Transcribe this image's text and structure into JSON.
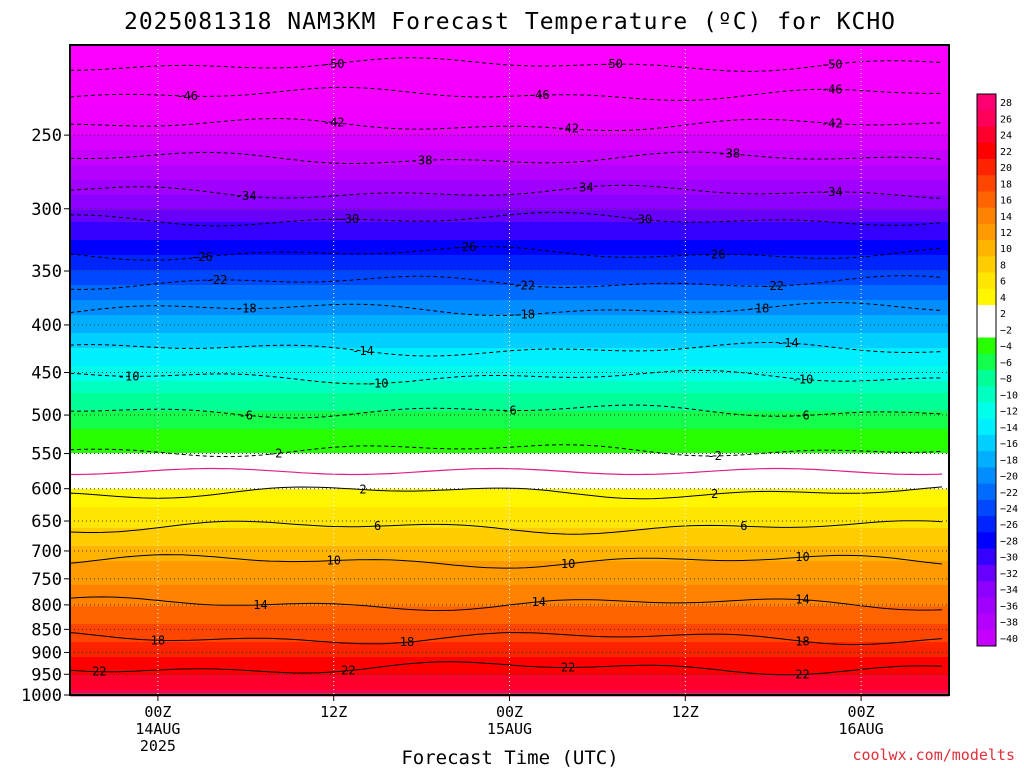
{
  "chart_data": {
    "type": "heatmap",
    "title": "2025081318 NAM3KM Forecast Temperature (ºC) for KCHO",
    "xlabel": "Forecast Time (UTC)",
    "credit": "coolwx.com/modelts",
    "y_axis": {
      "label": "",
      "scale": "log",
      "inverted": true,
      "ylim": [
        1000,
        200
      ],
      "ticks": [
        "250",
        "300",
        "350",
        "400",
        "450",
        "500",
        "550",
        "600",
        "650",
        "700",
        "750",
        "800",
        "850",
        "900",
        "950",
        "1000"
      ]
    },
    "x_axis": {
      "xlim_hours": [
        -6,
        54
      ],
      "ticks": [
        {
          "hour": 0,
          "lines": [
            "00Z",
            "14AUG",
            "2025"
          ]
        },
        {
          "hour": 12,
          "lines": [
            "12Z"
          ]
        },
        {
          "hour": 24,
          "lines": [
            "00Z",
            "15AUG"
          ]
        },
        {
          "hour": 36,
          "lines": [
            "12Z"
          ]
        },
        {
          "hour": 48,
          "lines": [
            "00Z",
            "16AUG"
          ]
        }
      ]
    },
    "grid": true,
    "legend": "right",
    "colorbar": {
      "levels": [
        28,
        26,
        24,
        22,
        20,
        18,
        16,
        14,
        12,
        10,
        8,
        6,
        4,
        2,
        -2,
        -4,
        -6,
        -8,
        -10,
        -12,
        -14,
        -16,
        -18,
        -20,
        -22,
        -24,
        -26,
        -28,
        -30,
        -32,
        -34,
        -36,
        -38,
        -40
      ],
      "labels": [
        "28",
        "26",
        "24",
        "22",
        "20",
        "18",
        "16",
        "14",
        "12",
        "10",
        "8",
        "6",
        "4",
        "2",
        "−2",
        "−4",
        "−6",
        "−8",
        "−10",
        "−12",
        "−14",
        "−16",
        "−18",
        "−20",
        "−22",
        "−24",
        "−26",
        "−28",
        "−30",
        "−32",
        "−34",
        "−36",
        "−38",
        "−40"
      ]
    },
    "temperature_profile": [
      {
        "pressure": 205,
        "temp": -52
      },
      {
        "pressure": 220,
        "temp": -48
      },
      {
        "pressure": 235,
        "temp": -45
      },
      {
        "pressure": 250,
        "temp": -42
      },
      {
        "pressure": 270,
        "temp": -38
      },
      {
        "pressure": 290,
        "temp": -34
      },
      {
        "pressure": 310,
        "temp": -30
      },
      {
        "pressure": 330,
        "temp": -27
      },
      {
        "pressure": 350,
        "temp": -24
      },
      {
        "pressure": 375,
        "temp": -20
      },
      {
        "pressure": 400,
        "temp": -17
      },
      {
        "pressure": 425,
        "temp": -14
      },
      {
        "pressure": 450,
        "temp": -11
      },
      {
        "pressure": 475,
        "temp": -8
      },
      {
        "pressure": 500,
        "temp": -5.5
      },
      {
        "pressure": 525,
        "temp": -3.5
      },
      {
        "pressure": 545,
        "temp": -2.2
      },
      {
        "pressure": 560,
        "temp": -1
      },
      {
        "pressure": 575,
        "temp": 0
      },
      {
        "pressure": 590,
        "temp": 1.2
      },
      {
        "pressure": 605,
        "temp": 2.2
      },
      {
        "pressure": 630,
        "temp": 4
      },
      {
        "pressure": 660,
        "temp": 6
      },
      {
        "pressure": 690,
        "temp": 8
      },
      {
        "pressure": 720,
        "temp": 10
      },
      {
        "pressure": 760,
        "temp": 12
      },
      {
        "pressure": 800,
        "temp": 14
      },
      {
        "pressure": 840,
        "temp": 16
      },
      {
        "pressure": 875,
        "temp": 18
      },
      {
        "pressure": 910,
        "temp": 20
      },
      {
        "pressure": 950,
        "temp": 22
      },
      {
        "pressure": 985,
        "temp": 24
      },
      {
        "pressure": 1000,
        "temp": 25
      }
    ],
    "contours": [
      {
        "label": "-50",
        "pressure": 210,
        "positions_hours": [
          12,
          31,
          46
        ]
      },
      {
        "label": "-46",
        "pressure": 226,
        "positions_hours": [
          2,
          26,
          46
        ]
      },
      {
        "label": "-42",
        "pressure": 244,
        "positions_hours": [
          12,
          28,
          46
        ]
      },
      {
        "label": "-38",
        "pressure": 265,
        "positions_hours": [
          18,
          39
        ]
      },
      {
        "label": "-34",
        "pressure": 288,
        "positions_hours": [
          6,
          29,
          46
        ]
      },
      {
        "label": "-30",
        "pressure": 308,
        "positions_hours": [
          13,
          33
        ]
      },
      {
        "label": "-26",
        "pressure": 335,
        "positions_hours": [
          3,
          21,
          38
        ]
      },
      {
        "label": "-22",
        "pressure": 360,
        "positions_hours": [
          4,
          25,
          42
        ]
      },
      {
        "label": "-18",
        "pressure": 385,
        "positions_hours": [
          6,
          25,
          41
        ]
      },
      {
        "label": "-14",
        "pressure": 425,
        "positions_hours": [
          14,
          43
        ]
      },
      {
        "label": "-10",
        "pressure": 455,
        "positions_hours": [
          -2,
          15,
          44
        ]
      },
      {
        "label": "-6",
        "pressure": 495,
        "positions_hours": [
          6,
          24,
          44
        ]
      },
      {
        "label": "-2",
        "pressure": 545,
        "positions_hours": [
          8,
          38
        ]
      },
      {
        "label": "2",
        "pressure": 605,
        "positions_hours": [
          14,
          38
        ]
      },
      {
        "label": "6",
        "pressure": 660,
        "positions_hours": [
          15,
          40
        ]
      },
      {
        "label": "10",
        "pressure": 718,
        "positions_hours": [
          12,
          28,
          44
        ]
      },
      {
        "label": "14",
        "pressure": 798,
        "positions_hours": [
          7,
          26,
          44
        ]
      },
      {
        "label": "18",
        "pressure": 868,
        "positions_hours": [
          0,
          17,
          44
        ]
      },
      {
        "label": "22",
        "pressure": 935,
        "positions_hours": [
          -4,
          13,
          28,
          44
        ]
      }
    ],
    "ground": {
      "pressure": 1000
    }
  }
}
